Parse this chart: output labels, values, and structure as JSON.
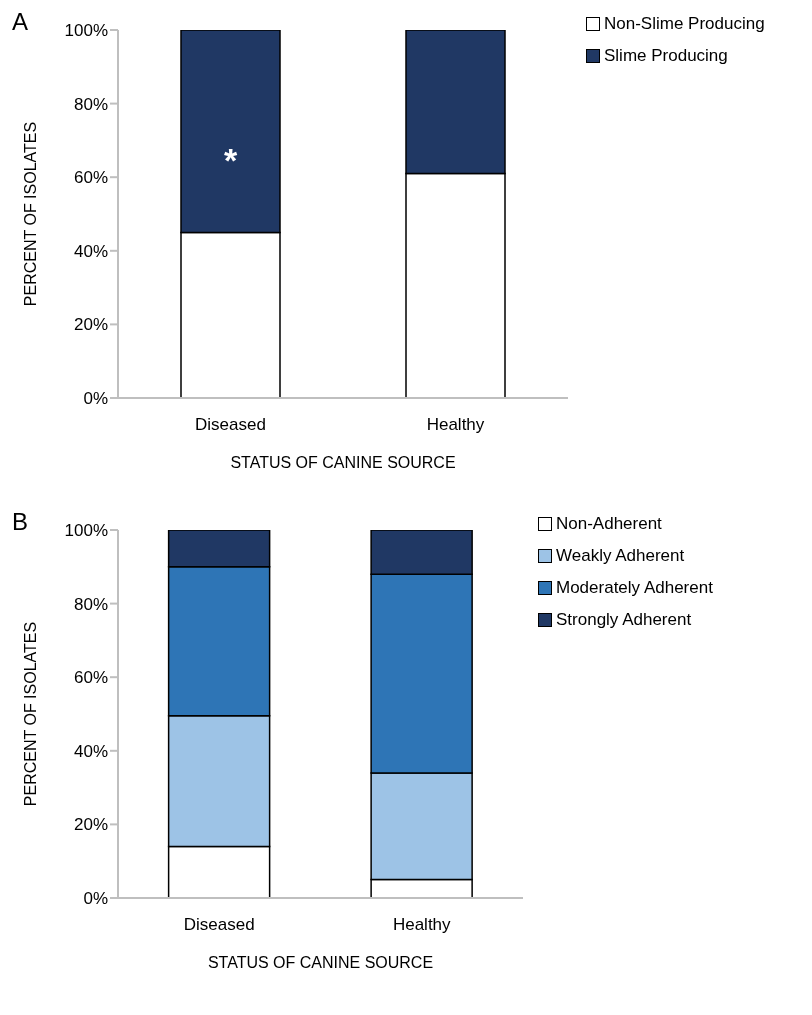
{
  "chart_data": [
    {
      "type": "bar",
      "stacked": true,
      "categories": [
        "Diseased",
        "Healthy"
      ],
      "xlabel": "STATUS OF CANINE SOURCE",
      "ylabel": "PERCENT OF ISOLATES",
      "series": [
        {
          "name": "Non-Slime Producing",
          "color": "#ffffff",
          "values": [
            45,
            61
          ]
        },
        {
          "name": "Slime Producing",
          "color": "#203864",
          "values": [
            55,
            39
          ]
        }
      ],
      "ylim": [
        0,
        100
      ],
      "yticks": [
        {
          "value": 0,
          "label": "0%"
        },
        {
          "value": 20,
          "label": "20%"
        },
        {
          "value": 40,
          "label": "40%"
        },
        {
          "value": 60,
          "label": "60%"
        },
        {
          "value": 80,
          "label": "80%"
        },
        {
          "value": 100,
          "label": "100%"
        }
      ],
      "legend": "top right",
      "grid": false,
      "annotations": [
        "A",
        "*"
      ]
    },
    {
      "type": "bar",
      "stacked": true,
      "categories": [
        "Diseased",
        "Healthy"
      ],
      "xlabel": "STATUS OF CANINE SOURCE",
      "ylabel": "PERCENT OF ISOLATES",
      "series": [
        {
          "name": "Non-Adherent",
          "color": "#ffffff",
          "values": [
            14,
            5
          ]
        },
        {
          "name": "Weakly Adherent",
          "color": "#9dc3e6",
          "values": [
            35.5,
            29
          ]
        },
        {
          "name": "Moderately Adherent",
          "color": "#2e75b6",
          "values": [
            40.5,
            54
          ]
        },
        {
          "name": "Strongly Adherent",
          "color": "#203864",
          "values": [
            10,
            12
          ]
        }
      ],
      "ylim": [
        0,
        100
      ],
      "yticks": [
        {
          "value": 0,
          "label": "0%"
        },
        {
          "value": 20,
          "label": "20%"
        },
        {
          "value": 40,
          "label": "40%"
        },
        {
          "value": 60,
          "label": "60%"
        },
        {
          "value": 80,
          "label": "80%"
        },
        {
          "value": 100,
          "label": "100%"
        }
      ],
      "legend": "top right",
      "grid": false,
      "annotations": [
        "B"
      ]
    }
  ]
}
